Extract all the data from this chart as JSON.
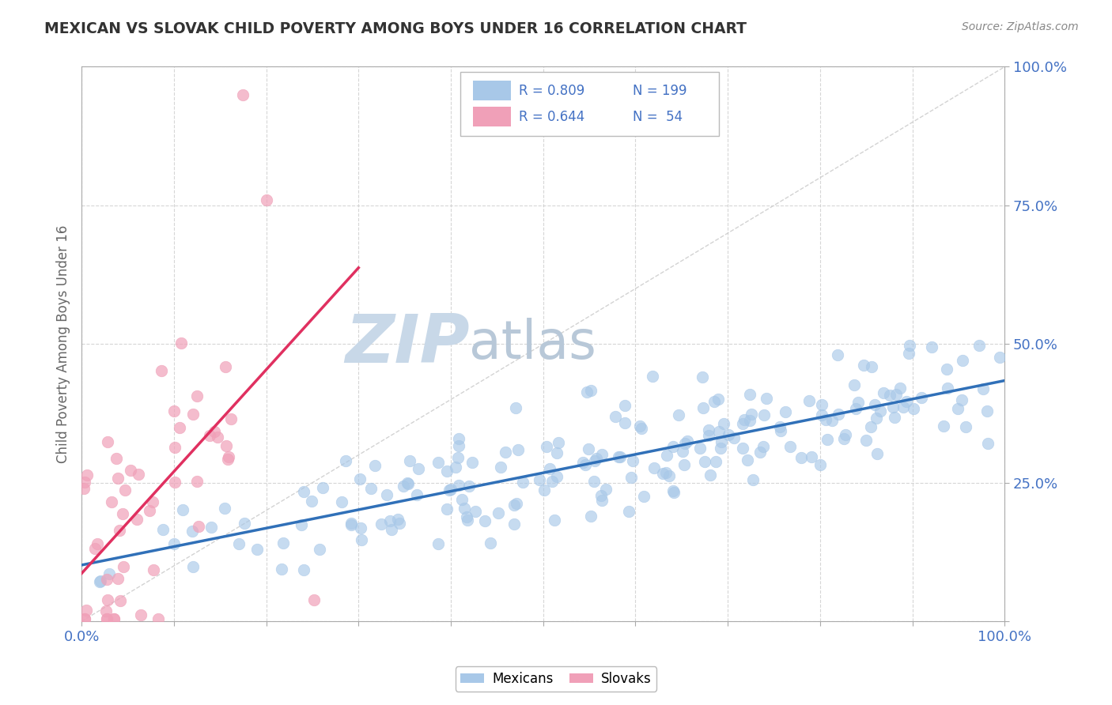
{
  "title": "MEXICAN VS SLOVAK CHILD POVERTY AMONG BOYS UNDER 16 CORRELATION CHART",
  "source": "Source: ZipAtlas.com",
  "ylabel": "Child Poverty Among Boys Under 16",
  "xlim": [
    0,
    1
  ],
  "ylim": [
    0,
    1
  ],
  "xticks": [
    0.0,
    0.1,
    0.2,
    0.3,
    0.4,
    0.5,
    0.6,
    0.7,
    0.8,
    0.9,
    1.0
  ],
  "yticks": [
    0.0,
    0.25,
    0.5,
    0.75,
    1.0
  ],
  "xtick_labels_show": [
    "0.0%",
    "100.0%"
  ],
  "ytick_labels": [
    "",
    "25.0%",
    "50.0%",
    "75.0%",
    "100.0%"
  ],
  "legend_r1": "R = 0.809",
  "legend_n1": "N = 199",
  "legend_r2": "R = 0.644",
  "legend_n2": "N =  54",
  "blue_color": "#a8c8e8",
  "pink_color": "#f0a0b8",
  "trend_blue": "#3070b8",
  "trend_pink": "#e03060",
  "watermark_zip": "ZIP",
  "watermark_atlas": "atlas",
  "watermark_color_zip": "#c8d8e8",
  "watermark_color_atlas": "#b8c8d8",
  "background_color": "#ffffff",
  "grid_color": "#cccccc",
  "title_color": "#333333",
  "axis_label_color": "#666666",
  "tick_color": "#4472c4",
  "r_value_blue": 0.809,
  "r_value_pink": 0.644,
  "n_blue": 199,
  "n_pink": 54,
  "blue_seed": 42,
  "pink_seed": 7
}
